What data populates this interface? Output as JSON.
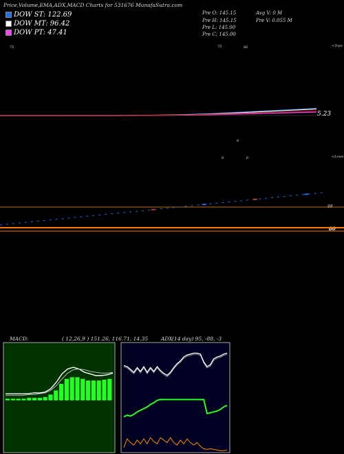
{
  "header": {
    "title": "Price,Volume,EMA,ADX,MACD Charts for 531676  MunafaSutra.com",
    "stats": {
      "o": "Pre   O: 145.15",
      "h": "Pre   H: 145.15",
      "l": "Pre   L: 145.00",
      "c": "Pre   C: 145.00",
      "avgv": "Avg V: 0  M",
      "prev": "Pre   V: 0.055 M"
    }
  },
  "legend": [
    {
      "label": "DOW ST: 122.69",
      "color": "#1e6fe8"
    },
    {
      "label": "DOW MT: 96.42",
      "color": "#ffffff"
    },
    {
      "label": "DOW PT: 47.41",
      "color": "#ff44ff"
    }
  ],
  "price_panel": {
    "marks": {
      "top": "<Tops",
      "lows": "<Lows",
      "price": "5.23",
      "level98": "98",
      "level80": "80"
    },
    "tiny": [
      "75",
      "75",
      "86",
      "6",
      "6",
      "6"
    ]
  },
  "indicator_panel": {
    "macd_label": "MACD:",
    "macd_values": "( 12,26,9 ) 151.26,  116.71,  14.35",
    "adx_label": "ADX",
    "adx_values": "(14  day) 95,  -88,  -3"
  },
  "chart_data": [
    {
      "type": "line",
      "name": "price-ema",
      "series": [
        {
          "color": "#1e6fe8",
          "values": [
            0,
            0,
            0,
            0,
            0,
            0,
            0,
            0,
            0.1,
            0.2,
            0.4,
            0.7,
            1.1,
            1.6,
            2.2,
            2.8,
            3.4,
            4.0,
            4.6,
            5.2
          ]
        },
        {
          "color": "#ffffff",
          "values": [
            0,
            0,
            0,
            0,
            0,
            0,
            0,
            0,
            0.1,
            0.2,
            0.3,
            0.6,
            0.9,
            1.3,
            1.8,
            2.4,
            3.0,
            3.6,
            4.2,
            4.8
          ]
        },
        {
          "color": "#ff44ff",
          "values": [
            0,
            0,
            0,
            0,
            0,
            0,
            0,
            0,
            0,
            0.1,
            0.2,
            0.3,
            0.5,
            0.7,
            1.0,
            1.3,
            1.6,
            1.9,
            2.2,
            2.5
          ]
        },
        {
          "color": "#b22222",
          "values": [
            0,
            0,
            0,
            0,
            0,
            0,
            0,
            0,
            0,
            0.1,
            0.2,
            0.4,
            0.7,
            1.0,
            1.4,
            1.8,
            2.2,
            2.6,
            3.0,
            3.4
          ]
        }
      ]
    },
    {
      "type": "line",
      "name": "volume-trend",
      "values": [
        0,
        2,
        4,
        6,
        8,
        10,
        12,
        14,
        16,
        18,
        20,
        22,
        24,
        26,
        28,
        30,
        32,
        34,
        36,
        38
      ]
    },
    {
      "type": "area",
      "name": "macd",
      "macd": [
        8,
        8,
        8,
        8,
        8,
        9,
        9,
        10,
        14,
        22,
        32,
        38,
        40,
        38,
        34,
        32,
        30,
        30,
        31,
        33
      ],
      "signal": [
        6,
        6,
        6,
        6,
        7,
        7,
        8,
        9,
        12,
        18,
        26,
        33,
        37,
        38,
        37,
        35,
        34,
        33,
        33,
        34
      ],
      "hist": [
        2,
        2,
        2,
        2,
        3,
        3,
        3,
        4,
        7,
        12,
        20,
        26,
        28,
        28,
        26,
        24,
        24,
        24,
        25,
        26
      ]
    },
    {
      "type": "line",
      "name": "adx",
      "top": [
        62,
        60,
        54,
        48,
        58,
        50,
        60,
        48,
        58,
        50,
        60,
        52,
        46,
        42,
        48,
        58,
        66,
        72,
        80,
        84,
        86,
        88,
        88,
        86,
        70,
        60,
        64,
        76,
        80,
        82,
        86,
        88
      ],
      "middle": [
        10,
        14,
        12,
        16,
        22,
        26,
        30,
        34,
        40,
        44,
        50,
        52,
        52,
        52,
        52,
        52,
        52,
        52,
        52,
        52,
        52,
        52,
        52,
        52,
        52,
        18,
        20,
        22,
        24,
        28,
        34,
        38
      ],
      "bottom": [
        6,
        20,
        14,
        10,
        18,
        12,
        20,
        12,
        22,
        16,
        12,
        22,
        18,
        14,
        22,
        14,
        10,
        18,
        12,
        20,
        14,
        10,
        14,
        8,
        4,
        3,
        4,
        3,
        2,
        1,
        1,
        2
      ]
    }
  ]
}
